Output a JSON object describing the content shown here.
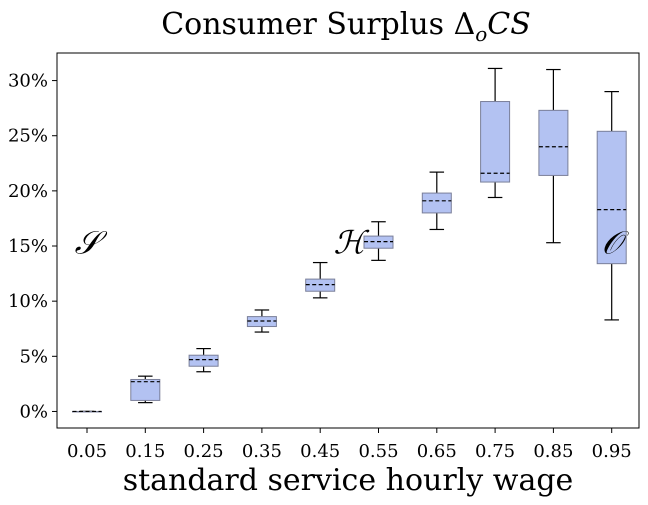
{
  "chart_data": {
    "type": "box",
    "title": "Consumer Surplus Δ_oCS",
    "title_parts": {
      "prefix": "Consumer Surplus Δ",
      "sub": "o",
      "suffix": "CS"
    },
    "xlabel": "standard service hourly wage",
    "ylabel": "",
    "categories": [
      "0.05",
      "0.15",
      "0.25",
      "0.35",
      "0.45",
      "0.55",
      "0.65",
      "0.75",
      "0.85",
      "0.95"
    ],
    "y_unit": "%",
    "ylim": [
      -1.5,
      32.5
    ],
    "yticks": [
      0,
      5,
      10,
      15,
      20,
      25,
      30
    ],
    "ytick_labels": [
      "0%",
      "5%",
      "10%",
      "15%",
      "20%",
      "25%",
      "30%"
    ],
    "grid": false,
    "legend": "none",
    "box_fill_color": "#b3c2f2",
    "box_edge_color": "#7a7f99",
    "whisker_color": "#000000",
    "median_style": "dashed",
    "boxes": [
      {
        "x": "0.05",
        "whislo": 0.0,
        "q1": 0.0,
        "med": 0.0,
        "q3": 0.0,
        "whishi": 0.0
      },
      {
        "x": "0.15",
        "whislo": 0.8,
        "q1": 1.0,
        "med": 2.7,
        "q3": 2.9,
        "whishi": 3.2
      },
      {
        "x": "0.25",
        "whislo": 3.6,
        "q1": 4.1,
        "med": 4.7,
        "q3": 5.1,
        "whishi": 5.7
      },
      {
        "x": "0.35",
        "whislo": 7.2,
        "q1": 7.7,
        "med": 8.2,
        "q3": 8.6,
        "whishi": 9.2
      },
      {
        "x": "0.45",
        "whislo": 10.3,
        "q1": 10.9,
        "med": 11.5,
        "q3": 12.0,
        "whishi": 13.5
      },
      {
        "x": "0.55",
        "whislo": 13.7,
        "q1": 14.8,
        "med": 15.4,
        "q3": 15.9,
        "whishi": 17.2
      },
      {
        "x": "0.65",
        "whislo": 16.5,
        "q1": 18.0,
        "med": 19.1,
        "q3": 19.8,
        "whishi": 21.7
      },
      {
        "x": "0.75",
        "whislo": 19.4,
        "q1": 20.8,
        "med": 21.6,
        "q3": 28.1,
        "whishi": 31.1
      },
      {
        "x": "0.85",
        "whislo": 15.3,
        "q1": 21.4,
        "med": 24.0,
        "q3": 27.3,
        "whishi": 31.0
      },
      {
        "x": "0.95",
        "whislo": 8.3,
        "q1": 13.4,
        "med": 18.3,
        "q3": 25.4,
        "whishi": 29.0
      }
    ],
    "annotations": [
      {
        "text": "𝒮",
        "x": "0.05",
        "y": 15.4
      },
      {
        "text": "ℋ",
        "x": "0.50",
        "y": 15.4
      },
      {
        "text": "𝒪",
        "x": "0.95",
        "y": 15.4
      }
    ]
  }
}
